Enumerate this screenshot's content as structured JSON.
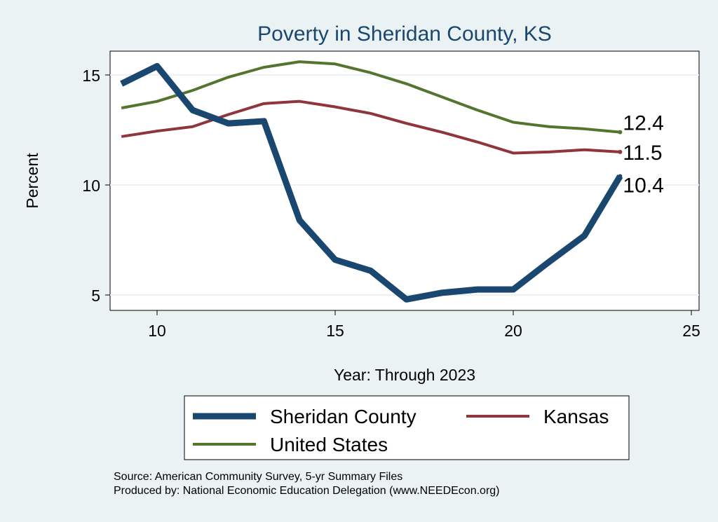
{
  "chart_data": {
    "type": "line",
    "title": "Poverty in Sheridan County, KS",
    "xlabel": "Year: Through 2023",
    "ylabel": "Percent",
    "xlim": [
      8.8,
      25.3
    ],
    "ylim": [
      4.3,
      16.1
    ],
    "xticks": [
      10,
      15,
      20,
      25
    ],
    "yticks": [
      5,
      10,
      15
    ],
    "grid": true,
    "legend_position": "bottom",
    "x": [
      9,
      10,
      11,
      12,
      13,
      14,
      15,
      16,
      17,
      18,
      19,
      20,
      21,
      22,
      23
    ],
    "series": [
      {
        "name": "Sheridan County",
        "color": "#1a476f",
        "width": 9,
        "end_label": "10.4",
        "values": [
          14.6,
          15.4,
          13.4,
          12.8,
          12.9,
          8.4,
          6.6,
          6.1,
          4.8,
          5.1,
          5.25,
          5.25,
          6.5,
          7.7,
          10.4
        ]
      },
      {
        "name": "Kansas",
        "color": "#90353b",
        "width": 4,
        "end_label": "11.5",
        "values": [
          12.2,
          12.45,
          12.65,
          13.2,
          13.7,
          13.8,
          13.55,
          13.25,
          12.8,
          12.4,
          11.95,
          11.45,
          11.5,
          11.6,
          11.5
        ]
      },
      {
        "name": "United States",
        "color": "#55752f",
        "width": 4,
        "end_label": "12.4",
        "values": [
          13.5,
          13.8,
          14.3,
          14.9,
          15.35,
          15.6,
          15.5,
          15.1,
          14.6,
          14.0,
          13.4,
          12.85,
          12.65,
          12.55,
          12.4
        ]
      }
    ]
  },
  "notes": {
    "source": "Source: American Community Survey, 5-yr Summary Files",
    "produced": "Produced by: National Economic Education Delegation (www.NEEDEcon.org)"
  }
}
